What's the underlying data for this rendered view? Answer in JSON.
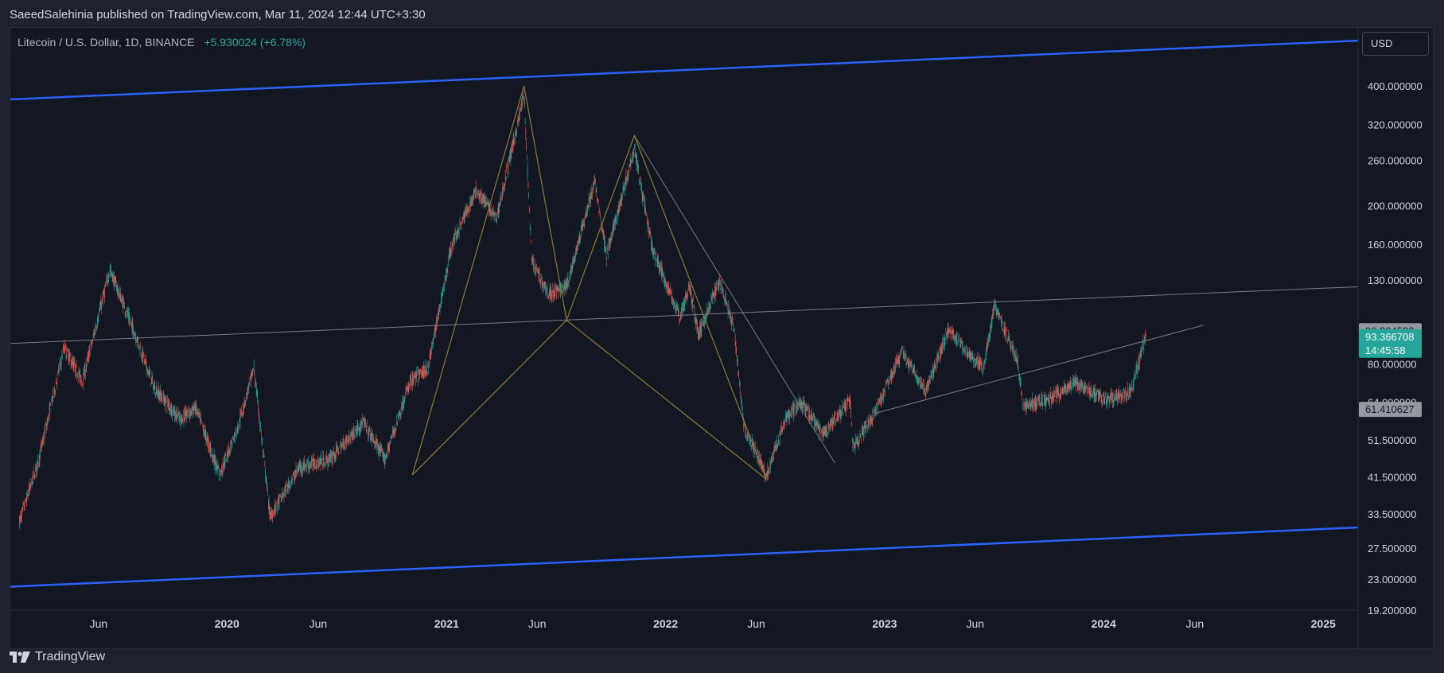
{
  "header": {
    "publisher_line": "SaeedSalehinia published on TradingView.com, Mar 11, 2024 12:44 UTC+3:30"
  },
  "legend": {
    "symbol": "Litecoin / U.S. Dollar, 1D, BINANCE",
    "change": "+5.930024 (+6.78%)"
  },
  "currency": "USD",
  "footer": {
    "brand": "TradingView",
    "logo_icon": "tradingview-logo-icon"
  },
  "colors": {
    "background": "#131722",
    "up": "#26a69a",
    "down": "#ef5350",
    "channel": "#2962ff",
    "harmonic": "#8a7d3c",
    "trend": "#787b86",
    "last_price": "#26a69a"
  },
  "chart_data": {
    "type": "candlestick",
    "y_scale": "log",
    "ylim": [
      19.2,
      560
    ],
    "price_ticks": [
      "400.000000",
      "320.000000",
      "260.000000",
      "200.000000",
      "160.000000",
      "130.000000",
      "80.000000",
      "64.000000",
      "51.500000",
      "41.500000",
      "33.500000",
      "27.500000",
      "23.000000",
      "19.200000"
    ],
    "x_ticks": [
      {
        "label": "Jun",
        "date": "2019-06-01",
        "bold": false
      },
      {
        "label": "2020",
        "date": "2020-01-01",
        "bold": true
      },
      {
        "label": "Jun",
        "date": "2020-06-01",
        "bold": false
      },
      {
        "label": "2021",
        "date": "2021-01-01",
        "bold": true
      },
      {
        "label": "Jun",
        "date": "2021-06-01",
        "bold": false
      },
      {
        "label": "2022",
        "date": "2022-01-01",
        "bold": true
      },
      {
        "label": "Jun",
        "date": "2022-06-01",
        "bold": false
      },
      {
        "label": "2023",
        "date": "2023-01-01",
        "bold": true
      },
      {
        "label": "Jun",
        "date": "2023-06-01",
        "bold": false
      },
      {
        "label": "2024",
        "date": "2024-01-01",
        "bold": true
      },
      {
        "label": "Jun",
        "date": "2024-06-01",
        "bold": false
      },
      {
        "label": "2025",
        "date": "2025-01-01",
        "bold": true
      }
    ],
    "price_path": [
      [
        "2019-01-20",
        32
      ],
      [
        "2019-02-20",
        45
      ],
      [
        "2019-04-05",
        88
      ],
      [
        "2019-05-05",
        72
      ],
      [
        "2019-06-20",
        138
      ],
      [
        "2019-08-01",
        95
      ],
      [
        "2019-09-01",
        70
      ],
      [
        "2019-10-15",
        58
      ],
      [
        "2019-11-10",
        62
      ],
      [
        "2019-12-20",
        42
      ],
      [
        "2020-01-20",
        56
      ],
      [
        "2020-02-15",
        78
      ],
      [
        "2020-03-13",
        33
      ],
      [
        "2020-05-01",
        44
      ],
      [
        "2020-06-20",
        46
      ],
      [
        "2020-08-15",
        57
      ],
      [
        "2020-09-20",
        46
      ],
      [
        "2020-11-01",
        72
      ],
      [
        "2020-12-01",
        78
      ],
      [
        "2021-01-10",
        160
      ],
      [
        "2021-02-20",
        220
      ],
      [
        "2021-03-25",
        185
      ],
      [
        "2021-05-10",
        380
      ],
      [
        "2021-05-23",
        145
      ],
      [
        "2021-06-20",
        120
      ],
      [
        "2021-07-20",
        125
      ],
      [
        "2021-09-05",
        230
      ],
      [
        "2021-09-25",
        150
      ],
      [
        "2021-11-10",
        280
      ],
      [
        "2021-12-10",
        155
      ],
      [
        "2022-01-25",
        105
      ],
      [
        "2022-02-10",
        125
      ],
      [
        "2022-02-25",
        95
      ],
      [
        "2022-04-01",
        130
      ],
      [
        "2022-04-25",
        98
      ],
      [
        "2022-05-12",
        55
      ],
      [
        "2022-06-18",
        42
      ],
      [
        "2022-07-20",
        58
      ],
      [
        "2022-08-15",
        64
      ],
      [
        "2022-09-20",
        53
      ],
      [
        "2022-11-05",
        65
      ],
      [
        "2022-11-09",
        49
      ],
      [
        "2022-12-20",
        62
      ],
      [
        "2023-01-30",
        86
      ],
      [
        "2023-03-10",
        68
      ],
      [
        "2023-04-18",
        98
      ],
      [
        "2023-05-20",
        85
      ],
      [
        "2023-06-15",
        78
      ],
      [
        "2023-07-03",
        112
      ],
      [
        "2023-08-10",
        82
      ],
      [
        "2023-08-20",
        63
      ],
      [
        "2023-10-01",
        65
      ],
      [
        "2023-11-15",
        72
      ],
      [
        "2024-01-03",
        65
      ],
      [
        "2024-02-15",
        68
      ],
      [
        "2024-03-11",
        93.366708
      ]
    ],
    "harmonic_pattern": [
      [
        "2020-11-05",
        42
      ],
      [
        "2021-05-10",
        400
      ],
      [
        "2021-07-20",
        103
      ],
      [
        "2021-11-10",
        300
      ],
      [
        "2022-06-18",
        41
      ],
      [
        "2021-07-20",
        103
      ],
      [
        "2020-11-05",
        42
      ]
    ],
    "trend_lines": [
      {
        "from": [
          "2019-01-05",
          90
        ],
        "to": [
          "2025-02-28",
          125
        ]
      },
      {
        "from": [
          "2021-11-10",
          300
        ],
        "to": [
          "2022-10-10",
          45
        ]
      },
      {
        "from": [
          "2022-12-15",
          60
        ],
        "to": [
          "2024-06-15",
          100
        ]
      }
    ],
    "channel_lines": [
      {
        "from": [
          "2019-01-05",
          370
        ],
        "to": [
          "2025-02-28",
          520
        ]
      },
      {
        "from": [
          "2019-01-05",
          22
        ],
        "to": [
          "2025-02-28",
          31
        ]
      }
    ],
    "price_labels": [
      {
        "value": "96.864582",
        "price": 96.864582,
        "color": "#9598a1",
        "text_color": "#131722"
      },
      {
        "value": "93.366708",
        "price": 93.366708,
        "color": "#26a69a",
        "text_color": "#ffffff",
        "countdown": "14:45:58"
      },
      {
        "value": "61.410627",
        "price": 61.410627,
        "color": "#9598a1",
        "text_color": "#131722"
      }
    ],
    "last_price": 93.366708
  }
}
